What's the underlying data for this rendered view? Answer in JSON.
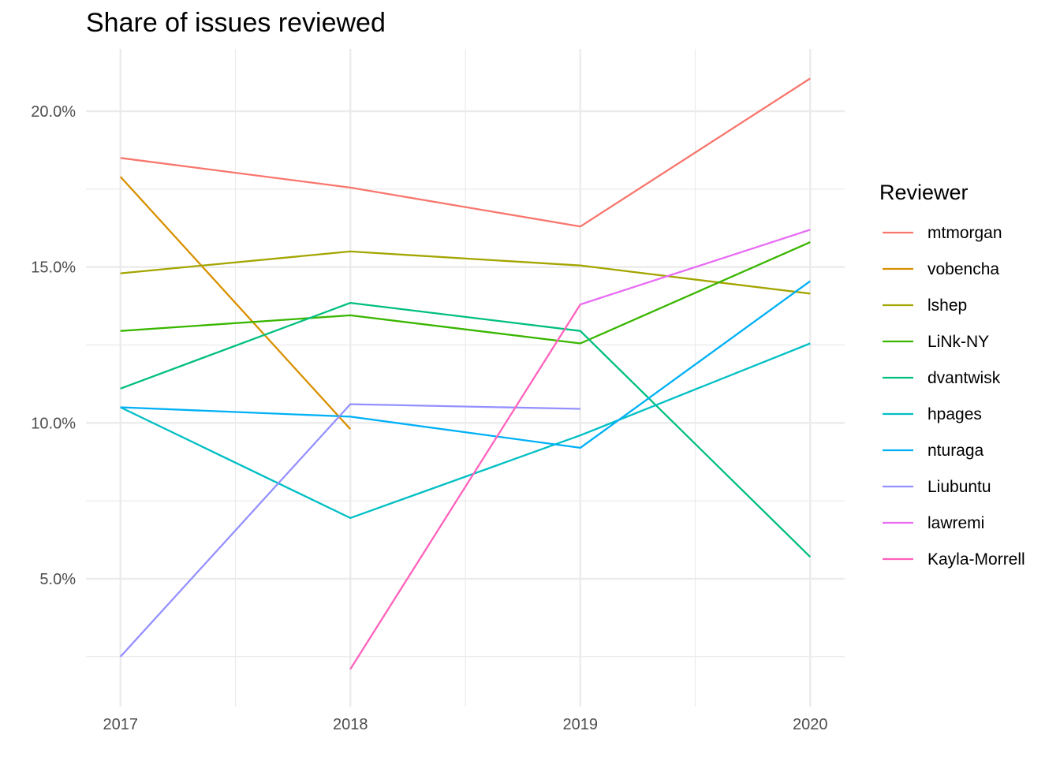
{
  "chart_data": {
    "type": "line",
    "title": "Share of issues reviewed",
    "xlabel": "",
    "ylabel": "",
    "x": [
      2017,
      2018,
      2019,
      2020
    ],
    "xlim": [
      2016.85,
      2020.15
    ],
    "ylim": [
      0.9,
      22.0
    ],
    "y_ticks": [
      5.0,
      10.0,
      15.0,
      20.0
    ],
    "y_minor_ticks": [
      2.5,
      7.5,
      12.5,
      17.5
    ],
    "x_minor_ticks": [
      2017.5,
      2018.5,
      2019.5
    ],
    "y_tick_labels": [
      "5.0%",
      "10.0%",
      "15.0%",
      "20.0%"
    ],
    "x_tick_labels": [
      "2017",
      "2018",
      "2019",
      "2020"
    ],
    "grid": true,
    "legend_title": "Reviewer",
    "legend_position": "right",
    "series": [
      {
        "name": "mtmorgan",
        "color": "#F8766D",
        "x": [
          2017,
          2018,
          2019,
          2020
        ],
        "values": [
          18.5,
          17.55,
          16.3,
          21.05
        ]
      },
      {
        "name": "vobencha",
        "color": "#D89000",
        "x": [
          2017,
          2018
        ],
        "values": [
          17.9,
          9.8
        ]
      },
      {
        "name": "lshep",
        "color": "#A3A500",
        "x": [
          2017,
          2018,
          2019,
          2020
        ],
        "values": [
          14.8,
          15.5,
          15.05,
          14.15
        ]
      },
      {
        "name": "LiNk-NY",
        "color": "#39B600",
        "x": [
          2017,
          2018,
          2019,
          2020
        ],
        "values": [
          12.95,
          13.45,
          12.55,
          15.8
        ]
      },
      {
        "name": "dvantwisk",
        "color": "#00BF7D",
        "x": [
          2017,
          2018,
          2019,
          2020
        ],
        "values": [
          11.1,
          13.85,
          12.95,
          5.7
        ]
      },
      {
        "name": "hpages",
        "color": "#00BFC4",
        "x": [
          2017,
          2018,
          2019,
          2020
        ],
        "values": [
          10.5,
          6.95,
          9.6,
          12.55
        ]
      },
      {
        "name": "nturaga",
        "color": "#00B0F6",
        "x": [
          2017,
          2018,
          2019,
          2020
        ],
        "values": [
          10.5,
          10.2,
          9.2,
          14.55
        ]
      },
      {
        "name": "Liubuntu",
        "color": "#9590FF",
        "x": [
          2017,
          2018,
          2019
        ],
        "values": [
          2.5,
          10.6,
          10.45
        ]
      },
      {
        "name": "lawremi",
        "color": "#E76BF3",
        "x": [
          2019,
          2020
        ],
        "values": [
          13.8,
          16.2
        ]
      },
      {
        "name": "Kayla-Morrell",
        "color": "#FF62BC",
        "x": [
          2018,
          2019
        ],
        "values": [
          2.1,
          13.8
        ]
      }
    ]
  }
}
